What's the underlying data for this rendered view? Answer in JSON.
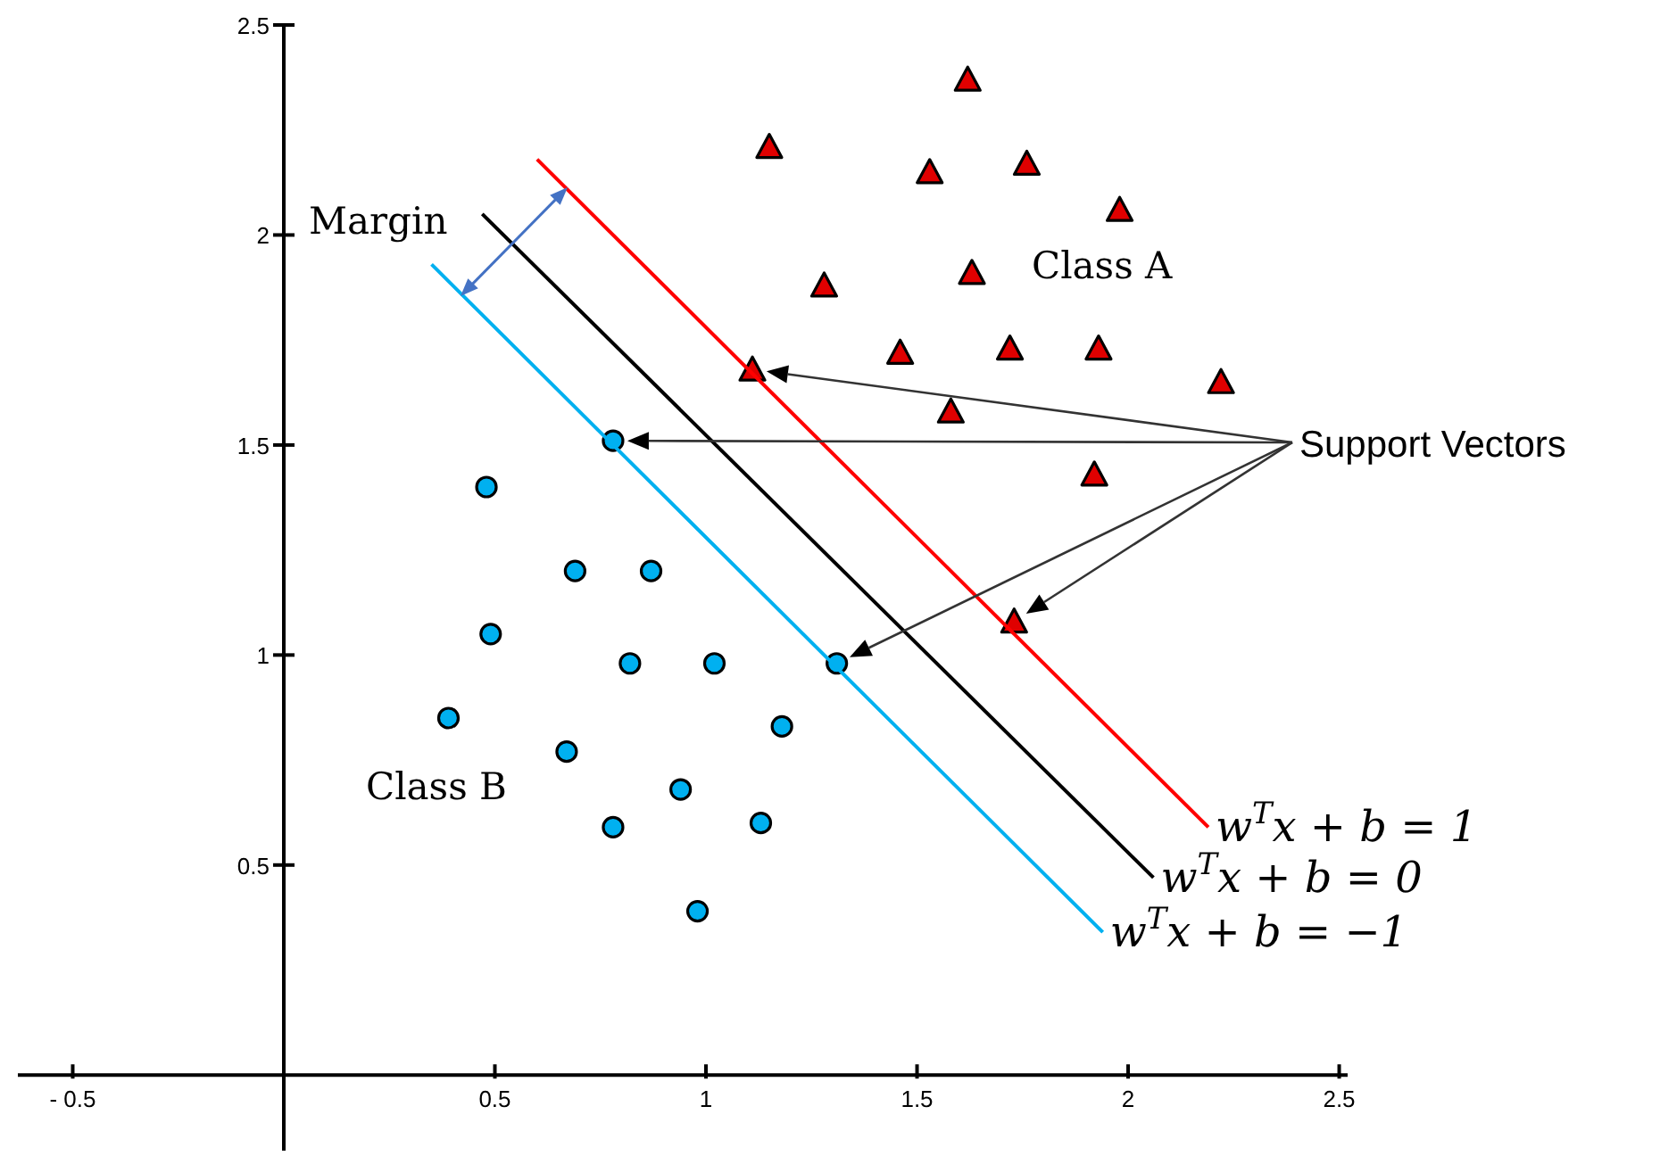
{
  "chart_data": {
    "type": "scatter",
    "xlim": [
      -0.63,
      2.52
    ],
    "ylim": [
      -0.18,
      2.5
    ],
    "xticks": [
      {
        "value": -0.5,
        "label": "- 0.5"
      },
      0.5,
      1,
      1.5,
      2,
      2.5
    ],
    "yticks": [
      0.5,
      1,
      1.5,
      2,
      2.5
    ],
    "grid": false,
    "series": [
      {
        "name": "Class A",
        "marker": "triangle",
        "color": "#e00000",
        "x": [
          1.62,
          1.15,
          1.53,
          1.76,
          1.98,
          1.28,
          1.63,
          1.46,
          1.72,
          1.93,
          2.22,
          1.11,
          1.58,
          1.92,
          1.73
        ],
        "values": [
          2.37,
          2.21,
          2.15,
          2.17,
          2.06,
          1.88,
          1.91,
          1.72,
          1.73,
          1.73,
          1.65,
          1.68,
          1.58,
          1.43,
          1.08
        ]
      },
      {
        "name": "Class B",
        "marker": "circle",
        "color": "#00b0f0",
        "x": [
          0.78,
          0.48,
          0.69,
          0.87,
          0.49,
          0.82,
          1.02,
          1.31,
          0.39,
          1.18,
          0.67,
          0.94,
          0.78,
          1.13,
          0.98
        ],
        "values": [
          1.51,
          1.4,
          1.2,
          1.2,
          1.05,
          0.98,
          0.98,
          0.98,
          0.85,
          0.83,
          0.77,
          0.68,
          0.59,
          0.6,
          0.39
        ]
      },
      {
        "name": "w$^{T}$x + b = 1",
        "type": "line",
        "marker": "none",
        "color": "#ff0000",
        "x": [
          0.6,
          2.19
        ],
        "values": [
          2.18,
          0.59
        ]
      },
      {
        "name": "w$^{T}$x + b = 0",
        "type": "line",
        "marker": "none",
        "color": "#000000",
        "x": [
          0.47,
          2.06
        ],
        "values": [
          2.05,
          0.47
        ]
      },
      {
        "name": "w$^{T}$x + b = −1",
        "type": "line",
        "marker": "none",
        "color": "#00b0f0",
        "x": [
          0.35,
          1.94
        ],
        "values": [
          1.93,
          0.34
        ]
      }
    ],
    "annotations": [
      "Margin",
      "Support Vectors"
    ]
  }
}
